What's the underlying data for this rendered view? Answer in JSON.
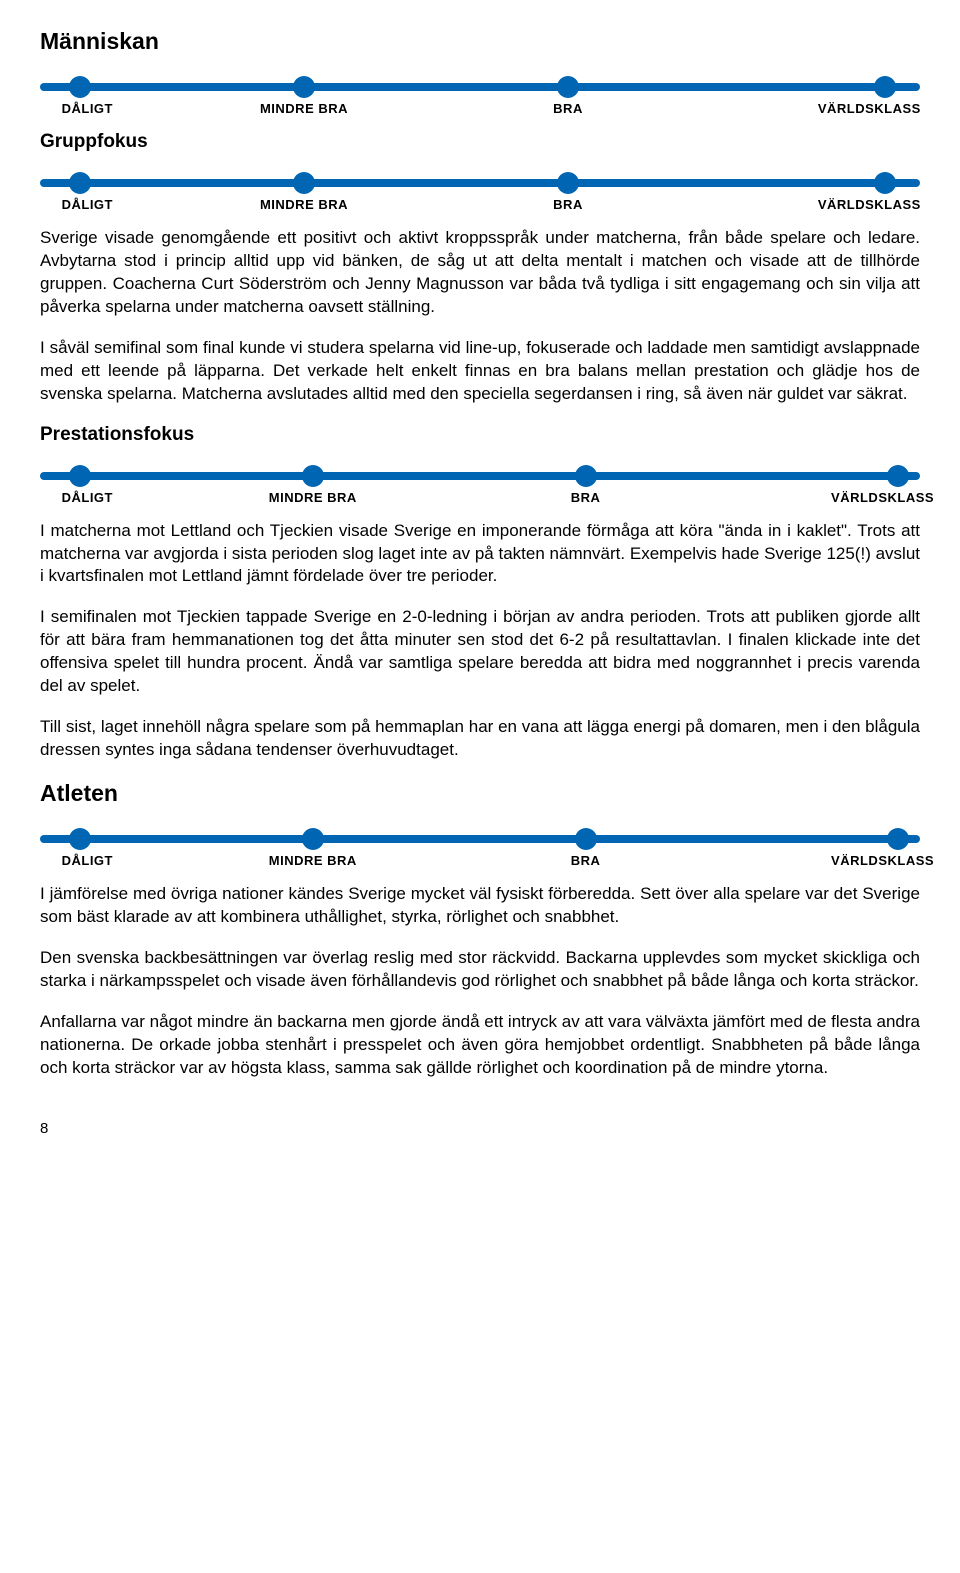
{
  "slider": {
    "track_color": "#0066b3",
    "dot_color": "#0066b3",
    "labels": [
      "DÅLIGT",
      "MINDRE BRA",
      "BRA",
      "VÄRLDSKLASS"
    ],
    "label_positions_pct": [
      4.5,
      30,
      60,
      96
    ],
    "dot_positions_pct": [
      4.5,
      30,
      60,
      96
    ]
  },
  "sections": {
    "manniskan": {
      "heading": "Människan",
      "slider_variant": "default"
    },
    "gruppfokus": {
      "heading": "Gruppfokus",
      "slider_variant": "default",
      "paragraphs": [
        "Sverige visade genomgående ett positivt och aktivt kroppsspråk under matcherna, från både spelare och ledare. Avbytarna stod i princip alltid upp vid bänken, de såg ut att delta mentalt i matchen och visade att de tillhörde gruppen. Coacherna Curt Söderström och Jenny Magnusson var båda två tydliga i sitt engagemang och sin vilja att påverka spelarna under matcherna oavsett ställning.",
        "I såväl semifinal som final kunde vi studera spelarna vid line-up, fokuserade och laddade men samtidigt avslappnade med ett leende på läpparna. Det verkade helt enkelt finnas en bra balans mellan prestation och glädje hos de svenska spelarna. Matcherna avslutades alltid med den speciella segerdansen i ring, så även när guldet var säkrat."
      ]
    },
    "prestationsfokus": {
      "heading": "Prestationsfokus",
      "slider_variant": "wide",
      "paragraphs": [
        "I matcherna mot Lettland och Tjeckien visade Sverige en imponerande förmåga att köra \"ända in i kaklet\". Trots att matcherna var avgjorda i sista perioden slog laget inte av på takten nämnvärt. Exempelvis hade Sverige 125(!) avslut i kvartsfinalen mot Lettland jämnt fördelade över tre perioder.",
        "I semifinalen mot Tjeckien tappade Sverige en 2-0-ledning i början av andra perioden. Trots att publiken gjorde allt för att bära fram hemmanationen tog det åtta minuter sen stod det 6-2 på resultattavlan. I finalen klickade inte det offensiva spelet till hundra procent. Ändå var samtliga spelare beredda att bidra med noggrannhet i precis varenda del av spelet.",
        "Till sist, laget innehöll några spelare som på hemmaplan har en vana att lägga energi på domaren, men i den blågula dressen syntes inga sådana tendenser överhuvudtaget."
      ]
    },
    "atleten": {
      "heading": "Atleten",
      "slider_variant": "wide",
      "paragraphs": [
        "I jämförelse med övriga nationer kändes Sverige mycket väl fysiskt förberedda. Sett över alla spelare var det Sverige som bäst klarade av att kombinera uthållighet, styrka, rörlighet och snabbhet.",
        "Den svenska backbesättningen var överlag reslig med stor räckvidd. Backarna upplevdes som mycket skickliga och starka i närkampsspelet och visade även förhållandevis god rörlighet och snabbhet på både långa och korta sträckor.",
        "Anfallarna var något mindre än backarna men gjorde ändå ett intryck av att vara välväxta jämfört med de flesta andra nationerna. De orkade jobba stenhårt i presspelet och även göra hemjobbet ordentligt. Snabbheten på både långa och korta sträckor var av högsta klass, samma sak gällde rörlighet och koordination på de mindre ytorna."
      ]
    }
  },
  "page_number": "8",
  "slider_variants": {
    "default": {
      "label_positions_pct": [
        4.5,
        30,
        60,
        96
      ],
      "dot_positions_pct": [
        4.5,
        30,
        60,
        96
      ]
    },
    "wide": {
      "label_positions_pct": [
        4.5,
        31,
        62,
        97.5
      ],
      "dot_positions_pct": [
        4.5,
        31,
        62,
        97.5
      ]
    }
  }
}
